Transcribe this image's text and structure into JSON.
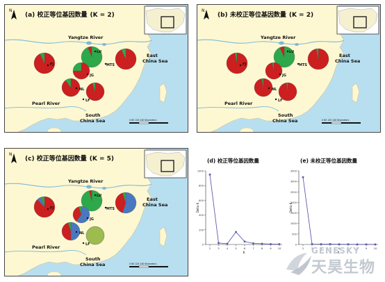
{
  "panels": [
    {
      "id": "a",
      "title_prefix": "(a) ",
      "title_cn": "校正等位基因数量",
      "title_k": "(K = 2)",
      "yangtze": "Yangtze River",
      "pearl": "Pearl River",
      "east1": "East",
      "east2": "China Sea",
      "south1": "South",
      "south2": "China Sea",
      "scale": "0    60   120        240 Kilometers"
    },
    {
      "id": "b",
      "title_prefix": "(b) ",
      "title_cn": "未校正等位基因数量",
      "title_k": "(K = 2)",
      "yangtze": "Yangtze River",
      "pearl": "Pearl River",
      "east1": "East",
      "east2": "China Sea",
      "south1": "South",
      "south2": "China Sea",
      "scale": "0    60   120        240 Kilometers"
    },
    {
      "id": "c",
      "title_prefix": "(c) ",
      "title_cn": "校正等位基因数量",
      "title_k": "(K = 5)",
      "yangtze": "Yangtze River",
      "pearl": "Pearl River",
      "east1": "East",
      "east2": "China Sea",
      "south1": "South",
      "south2": "China Sea",
      "scale": "0    60   120        240 Kilometers"
    }
  ],
  "north_label": "N",
  "watermark": {
    "en": "GENESKY",
    "cn": "天昊生物"
  },
  "colors": {
    "sea": "#b8dff0",
    "land": "#fdf8d2",
    "river": "#7fb7d9",
    "red": "#cc1f1f",
    "green": "#2da84a",
    "blue": "#4a78c0",
    "olive": "#9dbb4e",
    "line": "#5a5ab0"
  },
  "chart_data": [
    {
      "type": "line",
      "title": "(d) 校正等位基因数量",
      "xlabel": "K",
      "ylabel": "Delta K",
      "x": [
        2,
        3,
        4,
        5,
        6,
        7,
        8,
        9,
        10
      ],
      "values": [
        950,
        20,
        10,
        170,
        40,
        15,
        10,
        5,
        5
      ],
      "ylim": [
        0,
        1000
      ],
      "yticks": [
        0,
        200,
        400,
        600,
        800,
        1000
      ]
    },
    {
      "type": "line",
      "title": "(e) 未校正等位基因数量",
      "xlabel": "K",
      "ylabel": "Delta K",
      "x": [
        2,
        3,
        4,
        5,
        6,
        7,
        8,
        9,
        10
      ],
      "values": [
        3200,
        20,
        15,
        20,
        10,
        10,
        5,
        5,
        5
      ],
      "ylim": [
        0,
        3500
      ],
      "yticks": [
        0,
        500,
        1000,
        1500,
        2000,
        2500,
        3000,
        3500
      ]
    }
  ],
  "pies": {
    "a": [
      {
        "label": "FJ",
        "slices": [
          {
            "c": "red",
            "v": 0.93
          },
          {
            "c": "green",
            "v": 0.07
          }
        ]
      },
      {
        "label": "LU",
        "slices": [
          {
            "c": "green",
            "v": 0.94
          },
          {
            "c": "red",
            "v": 0.06
          }
        ]
      },
      {
        "label": "MTS",
        "slices": [
          {
            "c": "red",
            "v": 0.93
          },
          {
            "c": "green",
            "v": 0.07
          }
        ]
      },
      {
        "label": "JG",
        "slices": [
          {
            "c": "red",
            "v": 0.75
          },
          {
            "c": "green",
            "v": 0.25
          }
        ]
      },
      {
        "label": "NL",
        "slices": [
          {
            "c": "red",
            "v": 0.9
          },
          {
            "c": "green",
            "v": 0.1
          }
        ]
      },
      {
        "label": "LF",
        "slices": [
          {
            "c": "red",
            "v": 0.95
          },
          {
            "c": "green",
            "v": 0.05
          }
        ]
      }
    ],
    "b": [
      {
        "label": "FJ",
        "slices": [
          {
            "c": "red",
            "v": 0.97
          },
          {
            "c": "green",
            "v": 0.03
          }
        ]
      },
      {
        "label": "LU",
        "slices": [
          {
            "c": "green",
            "v": 0.93
          },
          {
            "c": "red",
            "v": 0.07
          }
        ]
      },
      {
        "label": "MTS",
        "slices": [
          {
            "c": "red",
            "v": 0.97
          },
          {
            "c": "green",
            "v": 0.03
          }
        ]
      },
      {
        "label": "JG",
        "slices": [
          {
            "c": "red",
            "v": 0.97
          },
          {
            "c": "green",
            "v": 0.03
          }
        ]
      },
      {
        "label": "NL",
        "slices": [
          {
            "c": "red",
            "v": 0.97
          },
          {
            "c": "green",
            "v": 0.03
          }
        ]
      },
      {
        "label": "LF",
        "slices": [
          {
            "c": "red",
            "v": 0.98
          },
          {
            "c": "green",
            "v": 0.02
          }
        ]
      }
    ],
    "c": [
      {
        "label": "FJ",
        "slices": [
          {
            "c": "red",
            "v": 0.88
          },
          {
            "c": "blue",
            "v": 0.06
          },
          {
            "c": "green",
            "v": 0.06
          }
        ]
      },
      {
        "label": "LU",
        "slices": [
          {
            "c": "green",
            "v": 0.96
          },
          {
            "c": "red",
            "v": 0.04
          }
        ]
      },
      {
        "label": "MTS",
        "slices": [
          {
            "c": "blue",
            "v": 0.55
          },
          {
            "c": "red",
            "v": 0.4
          },
          {
            "c": "green",
            "v": 0.05
          }
        ]
      },
      {
        "label": "JG",
        "slices": [
          {
            "c": "blue",
            "v": 0.6
          },
          {
            "c": "red",
            "v": 0.35
          },
          {
            "c": "green",
            "v": 0.05
          }
        ]
      },
      {
        "label": "NL",
        "slices": [
          {
            "c": "blue",
            "v": 0.5
          },
          {
            "c": "red",
            "v": 0.45
          },
          {
            "c": "green",
            "v": 0.05
          }
        ]
      },
      {
        "label": "LF",
        "slices": [
          {
            "c": "olive",
            "v": 1.0
          }
        ]
      }
    ]
  }
}
